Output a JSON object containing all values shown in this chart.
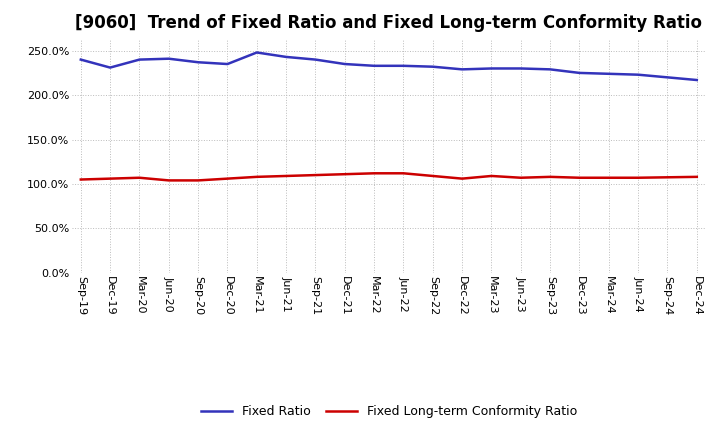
{
  "title": "[9060]  Trend of Fixed Ratio and Fixed Long-term Conformity Ratio",
  "x_labels": [
    "Sep-19",
    "Dec-19",
    "Mar-20",
    "Jun-20",
    "Sep-20",
    "Dec-20",
    "Mar-21",
    "Jun-21",
    "Sep-21",
    "Dec-21",
    "Mar-22",
    "Jun-22",
    "Sep-22",
    "Dec-22",
    "Mar-23",
    "Jun-23",
    "Sep-23",
    "Dec-23",
    "Mar-24",
    "Jun-24",
    "Sep-24",
    "Dec-24"
  ],
  "fixed_ratio": [
    240.0,
    231.0,
    240.0,
    241.0,
    237.0,
    235.0,
    248.0,
    243.0,
    240.0,
    235.0,
    233.0,
    233.0,
    232.0,
    229.0,
    230.0,
    230.0,
    229.0,
    225.0,
    224.0,
    223.0,
    220.0,
    217.0
  ],
  "fixed_lt_ratio": [
    105.0,
    106.0,
    107.0,
    104.0,
    104.0,
    106.0,
    108.0,
    109.0,
    110.0,
    111.0,
    112.0,
    112.0,
    109.0,
    106.0,
    109.0,
    107.0,
    108.0,
    107.0,
    107.0,
    107.0,
    107.5,
    108.0
  ],
  "line_color_blue": "#3333bb",
  "line_color_red": "#cc0000",
  "bg_color": "#ffffff",
  "grid_color": "#bbbbbb",
  "ylim": [
    0,
    262.5
  ],
  "yticks": [
    0.0,
    50.0,
    100.0,
    150.0,
    200.0,
    250.0
  ],
  "title_fontsize": 12,
  "tick_fontsize": 8,
  "legend_labels": [
    "Fixed Ratio",
    "Fixed Long-term Conformity Ratio"
  ]
}
